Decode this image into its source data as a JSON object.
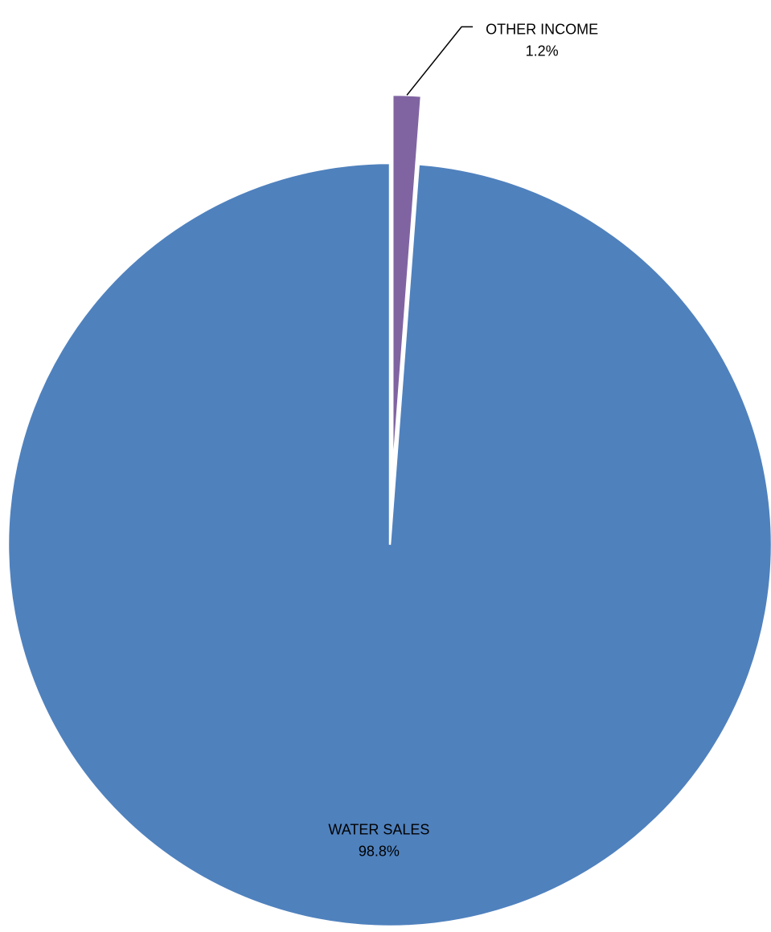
{
  "chart_data": {
    "type": "pie",
    "title": "",
    "slices": [
      {
        "label": "WATER SALES",
        "value": 98.8,
        "value_label": "98.8%",
        "color": "#4F81BD",
        "exploded": false
      },
      {
        "label": "OTHER INCOME",
        "value": 1.2,
        "value_label": "1.2%",
        "color": "#8064A2",
        "exploded": true
      }
    ],
    "start_angle": "12 o'clock",
    "direction": "counter-clockwise",
    "legend": "none",
    "data_labels": true
  }
}
